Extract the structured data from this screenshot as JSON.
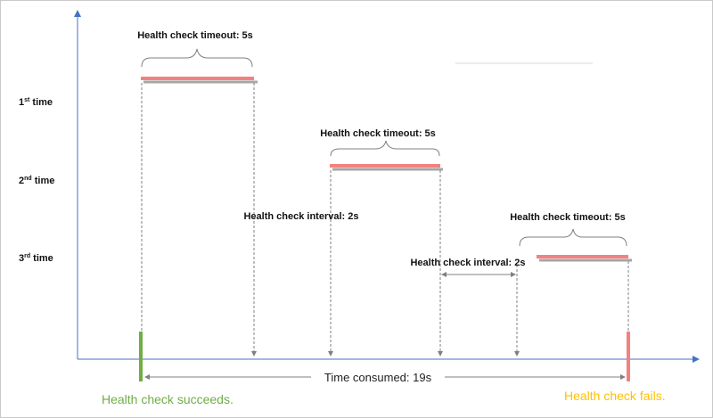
{
  "rows": [
    {
      "ordinal": "1",
      "suffix": "st",
      "word": " time"
    },
    {
      "ordinal": "2",
      "suffix": "nd",
      "word": " time"
    },
    {
      "ordinal": "3",
      "suffix": "rd",
      "word": " time"
    }
  ],
  "timeouts": [
    {
      "label": "Health check timeout: 5s"
    },
    {
      "label": "Health check timeout: 5s"
    },
    {
      "label": "Health check timeout: 5s"
    }
  ],
  "intervals": [
    {
      "label": "Health check interval: 2s"
    },
    {
      "label": "Health check interval: 2s"
    }
  ],
  "total_label": "Time consumed: 19s",
  "success_label": "Health check succeeds.",
  "fail_label": "Health check fails.",
  "colors": {
    "axis": "#4472c4",
    "bar": "#f4817f",
    "bar_shadow": "#a6a6a6",
    "success": "#70ad47",
    "fail": "#f4817f",
    "fail_text": "#ffc000",
    "dashed": "#808080"
  }
}
